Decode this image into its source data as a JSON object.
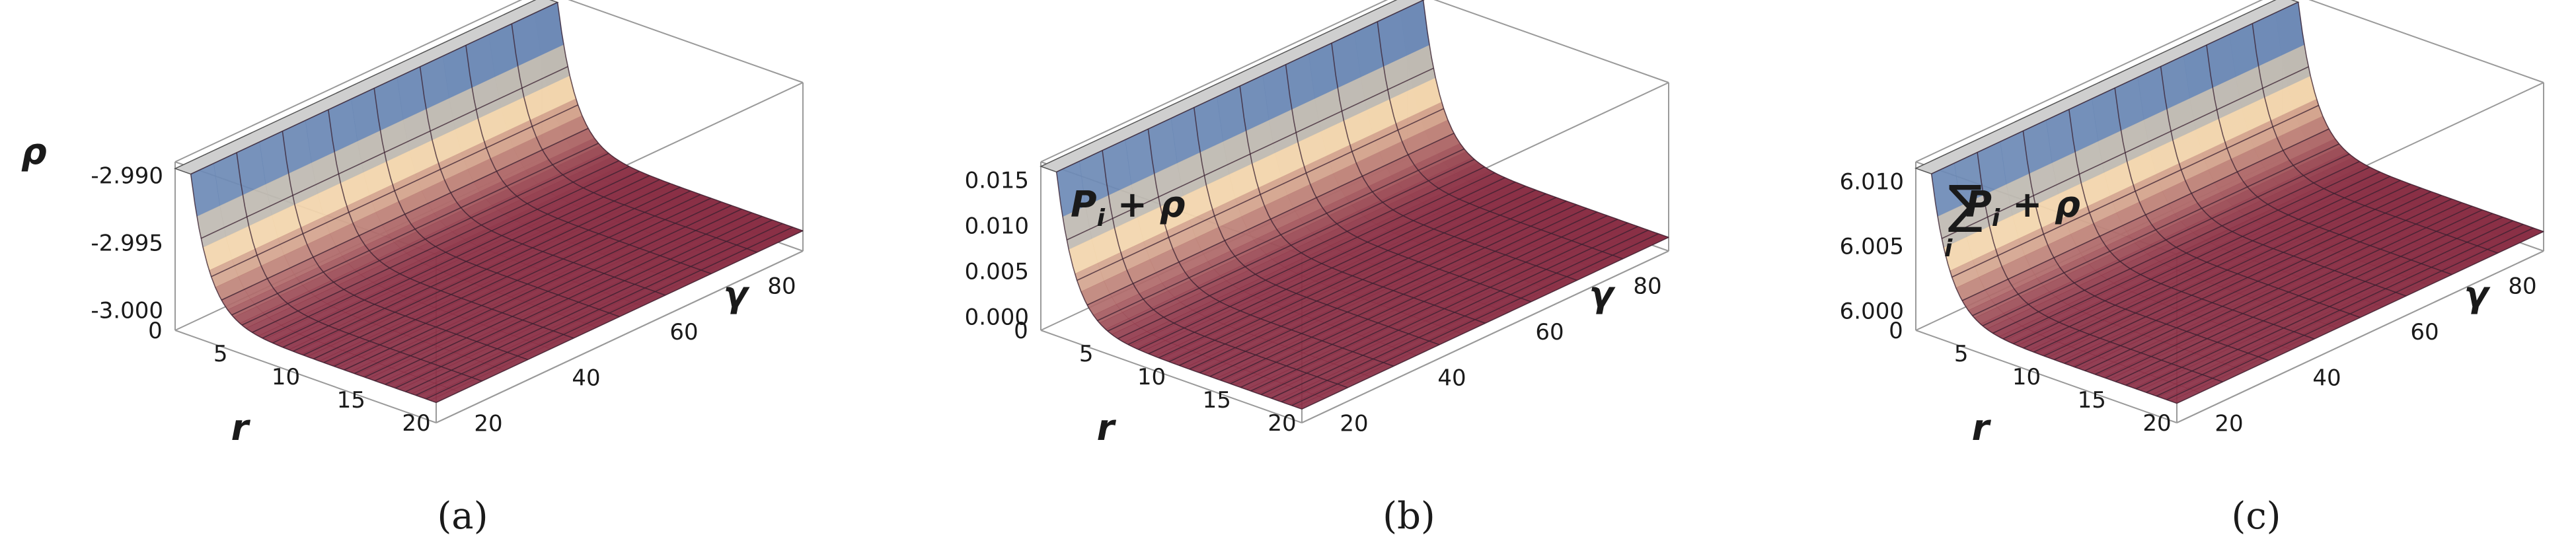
{
  "panels": [
    {
      "caption": "(a)",
      "z_label": "ρ",
      "z_label_has_sum": false,
      "z_label_has_P": false,
      "chart_data": {
        "type": "surface3d",
        "xlabel": "r",
        "ylabel": "γ",
        "zlabel": "ρ",
        "x_ticks": [
          "0",
          "5",
          "10",
          "15",
          "20"
        ],
        "y_ticks": [
          "20",
          "40",
          "60",
          "80"
        ],
        "z_ticks": [
          "-2.990",
          "-2.995",
          "-3.000"
        ],
        "x_range": [
          0,
          20
        ],
        "y_range": [
          15,
          90
        ],
        "z_range": [
          -3.0015,
          -2.989
        ],
        "baseline": -3.0,
        "peak": -2.9895,
        "decay_scale_r": 1.4
      }
    },
    {
      "caption": "(b)",
      "z_label": "ρ",
      "z_label_has_sum": false,
      "z_label_has_P": true,
      "chart_data": {
        "type": "surface3d",
        "xlabel": "r",
        "ylabel": "γ",
        "zlabel": "P_i + ρ",
        "x_ticks": [
          "0",
          "5",
          "10",
          "15",
          "20"
        ],
        "y_ticks": [
          "20",
          "40",
          "60",
          "80"
        ],
        "z_ticks": [
          "0.015",
          "0.010",
          "0.005",
          "0.000"
        ],
        "x_range": [
          0,
          20
        ],
        "y_range": [
          15,
          90
        ],
        "z_range": [
          -0.0015,
          0.017
        ],
        "baseline": 0.0,
        "peak": 0.0165,
        "decay_scale_r": 1.4
      }
    },
    {
      "caption": "(c)",
      "z_label": "ρ",
      "z_label_has_sum": true,
      "z_label_has_P": true,
      "chart_data": {
        "type": "surface3d",
        "xlabel": "r",
        "ylabel": "γ",
        "zlabel": "Σ_i P_i + ρ",
        "x_ticks": [
          "0",
          "5",
          "10",
          "15",
          "20"
        ],
        "y_ticks": [
          "20",
          "40",
          "60",
          "80"
        ],
        "z_ticks": [
          "6.010",
          "6.005",
          "6.000"
        ],
        "x_range": [
          0,
          20
        ],
        "y_range": [
          15,
          90
        ],
        "z_range": [
          5.9985,
          6.0115
        ],
        "baseline": 6.0,
        "peak": 6.011,
        "decay_scale_r": 1.4
      }
    }
  ],
  "z_label_parts": {
    "P": "P",
    "i": "i",
    "plus": " + ",
    "sum": "∑"
  },
  "colors": {
    "surface_low": "#8a2f45",
    "surface_mid": "#f5d9b0",
    "surface_high": "#3d6fb8",
    "cap": "#cfcfcf"
  }
}
